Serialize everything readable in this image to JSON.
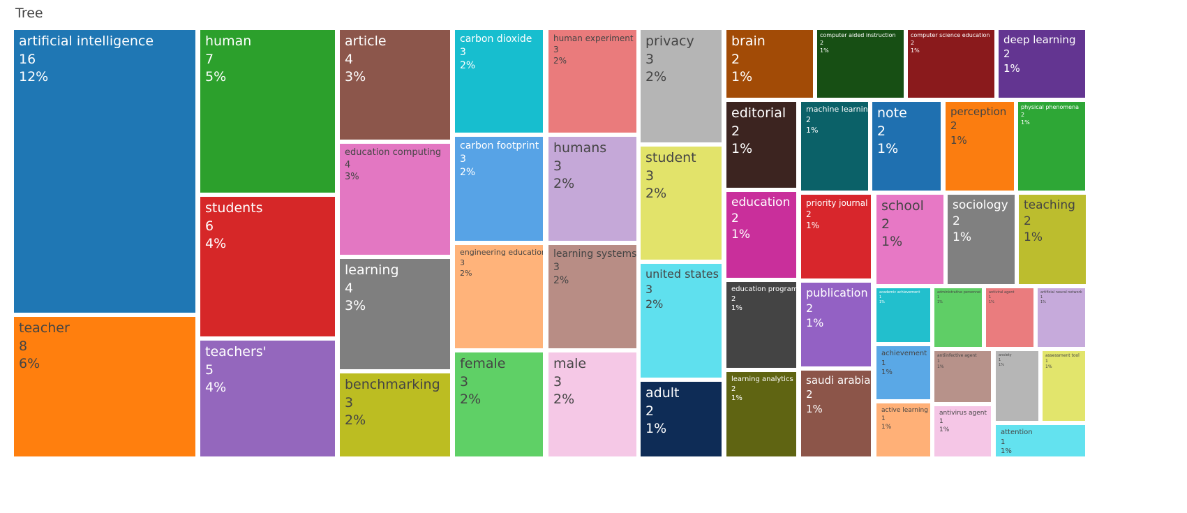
{
  "title": "Tree",
  "chart_data": {
    "type": "treemap",
    "title": "Tree",
    "items": [
      {
        "label": "artificial intelligence",
        "value": 16,
        "percent": "12%",
        "color": "#1f77b4"
      },
      {
        "label": "teacher",
        "value": 8,
        "percent": "6%",
        "color": "#ff7f0e"
      },
      {
        "label": "human",
        "value": 7,
        "percent": "5%",
        "color": "#2ca02c"
      },
      {
        "label": "students",
        "value": 6,
        "percent": "4%",
        "color": "#d62728"
      },
      {
        "label": "teachers'",
        "value": 5,
        "percent": "4%",
        "color": "#9467bd"
      },
      {
        "label": "article",
        "value": 4,
        "percent": "3%",
        "color": "#8c564b"
      },
      {
        "label": "education computing",
        "value": 4,
        "percent": "3%",
        "color": "#e377c2"
      },
      {
        "label": "learning",
        "value": 4,
        "percent": "3%",
        "color": "#7f7f7f"
      },
      {
        "label": "benchmarking",
        "value": 3,
        "percent": "2%",
        "color": "#bcbd22"
      },
      {
        "label": "carbon dioxide",
        "value": 3,
        "percent": "2%",
        "color": "#17becf"
      },
      {
        "label": "carbon footprint",
        "value": 3,
        "percent": "2%",
        "color": "#57a3e6"
      },
      {
        "label": "engineering education",
        "value": 3,
        "percent": "2%",
        "color": "#ffb37a"
      },
      {
        "label": "female",
        "value": 3,
        "percent": "2%",
        "color": "#5fd066"
      },
      {
        "label": "human experiment",
        "value": 3,
        "percent": "2%",
        "color": "#ea7b7c"
      },
      {
        "label": "humans",
        "value": 3,
        "percent": "2%",
        "color": "#c5a8d8"
      },
      {
        "label": "learning systems",
        "value": 3,
        "percent": "2%",
        "color": "#b88d85"
      },
      {
        "label": "male",
        "value": 3,
        "percent": "2%",
        "color": "#f5c8e6"
      },
      {
        "label": "privacy",
        "value": 3,
        "percent": "2%",
        "color": "#b5b5b5"
      },
      {
        "label": "student",
        "value": 3,
        "percent": "2%",
        "color": "#e2e36a"
      },
      {
        "label": "united states",
        "value": 3,
        "percent": "2%",
        "color": "#5fe0ee"
      },
      {
        "label": "adult",
        "value": 2,
        "percent": "1%",
        "color": "#0e2c56"
      },
      {
        "label": "brain",
        "value": 2,
        "percent": "1%",
        "color": "#a24b06"
      },
      {
        "label": "editorial",
        "value": 2,
        "percent": "1%",
        "color": "#3c2420"
      },
      {
        "label": "education",
        "value": 2,
        "percent": "1%",
        "color": "#c92f9b"
      },
      {
        "label": "education program",
        "value": 2,
        "percent": "1%",
        "color": "#444444"
      },
      {
        "label": "learning analytics",
        "value": 2,
        "percent": "1%",
        "color": "#5f6412"
      },
      {
        "label": "computer aided instruction",
        "value": 2,
        "percent": "1%",
        "color": "#174f14"
      },
      {
        "label": "machine learning",
        "value": 2,
        "percent": "1%",
        "color": "#0b6168"
      },
      {
        "label": "priority journal",
        "value": 2,
        "percent": "1%",
        "color": "#d8262c"
      },
      {
        "label": "publication",
        "value": 2,
        "percent": "1%",
        "color": "#9361c4"
      },
      {
        "label": "saudi arabia",
        "value": 2,
        "percent": "1%",
        "color": "#8c5549"
      },
      {
        "label": "computer science education",
        "value": 2,
        "percent": "1%",
        "color": "#8a1a1c"
      },
      {
        "label": "deep learning",
        "value": 2,
        "percent": "1%",
        "color": "#633591"
      },
      {
        "label": "note",
        "value": 2,
        "percent": "1%",
        "color": "#1f70b0"
      },
      {
        "label": "perception",
        "value": 2,
        "percent": "1%",
        "color": "#fb7d10"
      },
      {
        "label": "physical phenomena",
        "value": 2,
        "percent": "1%",
        "color": "#2ea736"
      },
      {
        "label": "school",
        "value": 2,
        "percent": "1%",
        "color": "#e778c5"
      },
      {
        "label": "sociology",
        "value": 2,
        "percent": "1%",
        "color": "#808080"
      },
      {
        "label": "teaching",
        "value": 2,
        "percent": "1%",
        "color": "#bcbd2e"
      },
      {
        "label": "academic achievement",
        "value": 1,
        "percent": "1%",
        "color": "#22bfcd"
      },
      {
        "label": "achievement",
        "value": 1,
        "percent": "1%",
        "color": "#5aa8e6"
      },
      {
        "label": "active learning",
        "value": 1,
        "percent": "1%",
        "color": "#ffb077"
      },
      {
        "label": "administrative personnel",
        "value": 1,
        "percent": "1%",
        "color": "#5fce66"
      },
      {
        "label": "antiinfective agent",
        "value": 1,
        "percent": "1%",
        "color": "#b7928a"
      },
      {
        "label": "antivirus agent",
        "value": 1,
        "percent": "1%",
        "color": "#f5c6e6"
      },
      {
        "label": "antiviral agent",
        "value": 1,
        "percent": "1%",
        "color": "#ea7c7e"
      },
      {
        "label": "anxiety",
        "value": 1,
        "percent": "1%",
        "color": "#b6b6b6"
      },
      {
        "label": "artificial neural network",
        "value": 1,
        "percent": "1%",
        "color": "#c6aadb"
      },
      {
        "label": "assessment tool",
        "value": 1,
        "percent": "1%",
        "color": "#e2e56c"
      },
      {
        "label": "attention",
        "value": 1,
        "percent": "1%",
        "color": "#63e2ef"
      }
    ]
  }
}
